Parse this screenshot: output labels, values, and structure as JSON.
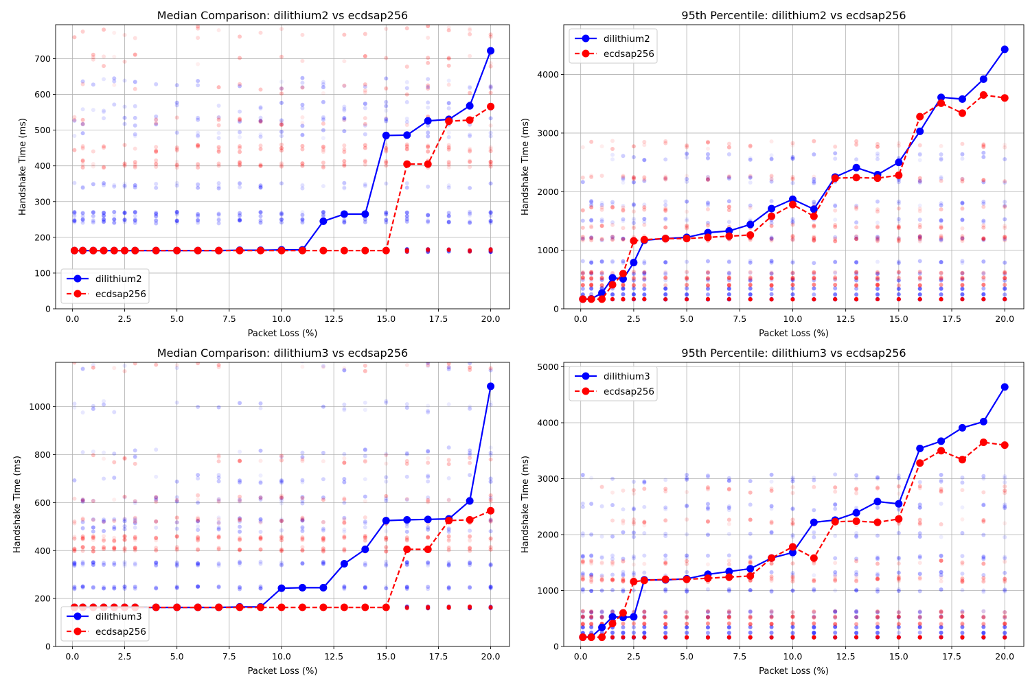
{
  "figure": {
    "background": "#ffffff"
  },
  "colors": {
    "series_a": "#0000ff",
    "series_b": "#ff0000",
    "grid": "#b0b0b0"
  },
  "chart_data": [
    {
      "type": "line",
      "title": "Median Comparison: dilithium2 vs ecdsap256",
      "xlabel": "Packet Loss (%)",
      "ylabel": "Handshake Time (ms)",
      "xlim": [
        -0.8,
        20.9
      ],
      "ylim": [
        0,
        795
      ],
      "xticks": [
        0.0,
        2.5,
        5.0,
        7.5,
        10.0,
        12.5,
        15.0,
        17.5,
        20.0
      ],
      "xtick_labels": [
        "0.0",
        "2.5",
        "5.0",
        "7.5",
        "10.0",
        "12.5",
        "15.0",
        "17.5",
        "20.0"
      ],
      "yticks": [
        0,
        100,
        200,
        300,
        400,
        500,
        600,
        700
      ],
      "ytick_labels": [
        "0",
        "100",
        "200",
        "300",
        "400",
        "500",
        "600",
        "700"
      ],
      "grid": true,
      "legend_position": "lower-left",
      "x": [
        0.1,
        0.5,
        1,
        1.5,
        2,
        2.5,
        3,
        4,
        5,
        6,
        7,
        8,
        9,
        10,
        11,
        12,
        13,
        14,
        15,
        16,
        17,
        18,
        19,
        20
      ],
      "series": [
        {
          "name": "dilithium2",
          "style": "solid",
          "values": [
            163,
            163,
            163,
            163,
            163,
            163,
            163,
            163,
            163,
            163,
            163,
            164,
            164,
            165,
            165,
            245,
            265,
            265,
            485,
            486,
            526,
            530,
            568,
            722
          ]
        },
        {
          "name": "ecdsap256",
          "style": "dashed",
          "values": [
            163,
            163,
            163,
            163,
            163,
            163,
            163,
            163,
            163,
            163,
            163,
            163,
            163,
            163,
            163,
            163,
            163,
            163,
            163,
            405,
            405,
            525,
            528,
            566
          ]
        }
      ],
      "background_scatter_levels": {
        "series_a": [
          163,
          245,
          265,
          345,
          488,
          525,
          565,
          630
        ],
        "series_b": [
          163,
          405,
          450,
          525,
          615,
          695,
          775
        ]
      }
    },
    {
      "type": "line",
      "title": "95th Percentile: dilithium2 vs ecdsap256",
      "xlabel": "Packet Loss (%)",
      "ylabel": "Handshake Time (ms)",
      "xlim": [
        -0.8,
        20.9
      ],
      "ylim": [
        0,
        4850
      ],
      "xticks": [
        0.0,
        2.5,
        5.0,
        7.5,
        10.0,
        12.5,
        15.0,
        17.5,
        20.0
      ],
      "xtick_labels": [
        "0.0",
        "2.5",
        "5.0",
        "7.5",
        "10.0",
        "12.5",
        "15.0",
        "17.5",
        "20.0"
      ],
      "yticks": [
        0,
        1000,
        2000,
        3000,
        4000
      ],
      "ytick_labels": [
        "0",
        "1000",
        "2000",
        "3000",
        "4000"
      ],
      "grid": true,
      "legend_position": "upper-left",
      "x": [
        0.1,
        0.5,
        1,
        1.5,
        2,
        2.5,
        3,
        4,
        5,
        6,
        7,
        8,
        9,
        10,
        11,
        12,
        13,
        14,
        15,
        16,
        17,
        18,
        19,
        20
      ],
      "series": [
        {
          "name": "dilithium2",
          "style": "solid",
          "values": [
            165,
            170,
            270,
            530,
            510,
            790,
            1170,
            1200,
            1220,
            1300,
            1330,
            1440,
            1710,
            1870,
            1700,
            2250,
            2410,
            2290,
            2500,
            3030,
            3610,
            3580,
            3920,
            4430
          ]
        },
        {
          "name": "ecdsap256",
          "style": "dashed",
          "values": [
            165,
            165,
            165,
            410,
            600,
            1160,
            1180,
            1200,
            1200,
            1220,
            1240,
            1260,
            1580,
            1780,
            1580,
            2230,
            2240,
            2230,
            2280,
            3280,
            3510,
            3340,
            3650,
            3600
          ]
        }
      ],
      "background_scatter_levels": {
        "series_a": [
          163,
          245,
          345,
          490,
          600,
          800,
          1200,
          1500,
          1800,
          2200,
          2600
        ],
        "series_b": [
          163,
          405,
          525,
          620,
          1180,
          1220,
          1400,
          1700,
          2220,
          2800
        ]
      }
    },
    {
      "type": "line",
      "title": "Median Comparison: dilithium3 vs ecdsap256",
      "xlabel": "Packet Loss (%)",
      "ylabel": "Handshake Time (ms)",
      "xlim": [
        -0.8,
        20.9
      ],
      "ylim": [
        0,
        1185
      ],
      "xticks": [
        0.0,
        2.5,
        5.0,
        7.5,
        10.0,
        12.5,
        15.0,
        17.5,
        20.0
      ],
      "xtick_labels": [
        "0.0",
        "2.5",
        "5.0",
        "7.5",
        "10.0",
        "12.5",
        "15.0",
        "17.5",
        "20.0"
      ],
      "yticks": [
        0,
        200,
        400,
        600,
        800,
        1000
      ],
      "ytick_labels": [
        "0",
        "200",
        "400",
        "600",
        "800",
        "1000"
      ],
      "grid": true,
      "legend_position": "lower-left",
      "x": [
        0.1,
        0.5,
        1,
        1.5,
        2,
        2.5,
        3,
        4,
        5,
        6,
        7,
        8,
        9,
        10,
        11,
        12,
        13,
        14,
        15,
        16,
        17,
        18,
        19,
        20
      ],
      "series": [
        {
          "name": "dilithium3",
          "style": "solid",
          "values": [
            163,
            163,
            163,
            163,
            163,
            163,
            163,
            163,
            163,
            163,
            163,
            165,
            165,
            243,
            245,
            245,
            345,
            405,
            525,
            528,
            530,
            532,
            607,
            1085
          ]
        },
        {
          "name": "ecdsap256",
          "style": "dashed",
          "values": [
            163,
            163,
            163,
            163,
            163,
            163,
            163,
            163,
            163,
            163,
            163,
            163,
            163,
            163,
            163,
            163,
            163,
            163,
            163,
            405,
            405,
            525,
            528,
            566
          ]
        }
      ],
      "background_scatter_levels": {
        "series_a": [
          163,
          245,
          345,
          490,
          525,
          610,
          700,
          810,
          1000,
          1180
        ],
        "series_b": [
          163,
          405,
          450,
          525,
          615,
          780,
          1170
        ]
      }
    },
    {
      "type": "line",
      "title": "95th Percentile: dilithium3 vs ecdsap256",
      "xlabel": "Packet Loss (%)",
      "ylabel": "Handshake Time (ms)",
      "xlim": [
        -0.8,
        20.9
      ],
      "ylim": [
        0,
        5080
      ],
      "xticks": [
        0.0,
        2.5,
        5.0,
        7.5,
        10.0,
        12.5,
        15.0,
        17.5,
        20.0
      ],
      "xtick_labels": [
        "0.0",
        "2.5",
        "5.0",
        "7.5",
        "10.0",
        "12.5",
        "15.0",
        "17.5",
        "20.0"
      ],
      "yticks": [
        0,
        1000,
        2000,
        3000,
        4000,
        5000
      ],
      "ytick_labels": [
        "0",
        "1000",
        "2000",
        "3000",
        "4000",
        "5000"
      ],
      "grid": true,
      "legend_position": "upper-left",
      "x": [
        0.1,
        0.5,
        1,
        1.5,
        2,
        2.5,
        3,
        4,
        5,
        6,
        7,
        8,
        9,
        10,
        11,
        12,
        13,
        14,
        15,
        16,
        17,
        18,
        19,
        20
      ],
      "series": [
        {
          "name": "dilithium3",
          "style": "solid",
          "values": [
            165,
            170,
            340,
            530,
            520,
            530,
            1190,
            1190,
            1210,
            1290,
            1340,
            1390,
            1580,
            1680,
            2220,
            2260,
            2390,
            2590,
            2550,
            3540,
            3670,
            3910,
            4020,
            4640
          ]
        },
        {
          "name": "ecdsap256",
          "style": "dashed",
          "values": [
            165,
            165,
            165,
            410,
            600,
            1160,
            1180,
            1200,
            1200,
            1220,
            1240,
            1260,
            1580,
            1780,
            1580,
            2230,
            2240,
            2220,
            2280,
            3280,
            3500,
            3340,
            3650,
            3600
          ]
        }
      ],
      "background_scatter_levels": {
        "series_a": [
          163,
          245,
          345,
          525,
          620,
          1000,
          1300,
          1600,
          2000,
          2500,
          3000
        ],
        "series_b": [
          163,
          405,
          525,
          620,
          1180,
          1220,
          1500,
          2220,
          2800
        ]
      }
    }
  ]
}
